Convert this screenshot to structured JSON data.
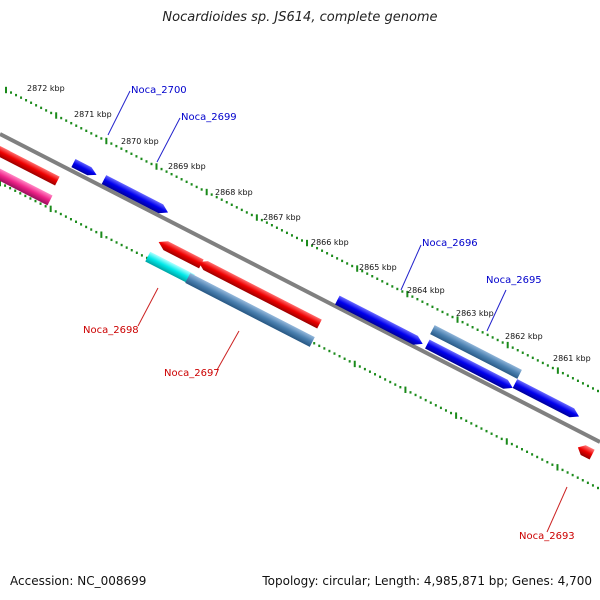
{
  "title": "Nocardioides sp. JS614, complete genome",
  "footer": {
    "accession": "Accession: NC_008699",
    "stats": "Topology: circular; Length: 4,985,871 bp; Genes: 4,700"
  },
  "colors": {
    "forward_gene": "#0000ee",
    "reverse_gene": "#ee0000",
    "rna_gene": "#ee2288",
    "other_feature": "#4a80b0",
    "other_feature_alt": "#00e0e0",
    "backbone": "#888888",
    "tick": "#1a8a1a",
    "forward_label": "#0000cc",
    "reverse_label": "#cc0000"
  },
  "scale_labels": [
    "2872 kbp",
    "2871 kbp",
    "2870 kbp",
    "2869 kbp",
    "2868 kbp",
    "2867 kbp",
    "2866 kbp",
    "2865 kbp",
    "2864 kbp",
    "2863 kbp",
    "2862 kbp",
    "2861 kbp"
  ],
  "gene_labels": [
    {
      "text": "Noca_2700",
      "strand": "forward"
    },
    {
      "text": "Noca_2699",
      "strand": "forward"
    },
    {
      "text": "Noca_2696",
      "strand": "forward"
    },
    {
      "text": "Noca_2695",
      "strand": "forward"
    },
    {
      "text": "Noca_2698",
      "strand": "reverse"
    },
    {
      "text": "Noca_2697",
      "strand": "reverse"
    },
    {
      "text": "Noca_2693",
      "strand": "reverse"
    }
  ]
}
